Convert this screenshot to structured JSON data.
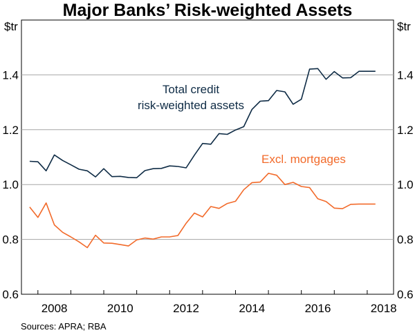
{
  "chart_data": {
    "type": "line",
    "title": "Major Banks’ Risk-weighted Assets",
    "left_unit": "$tr",
    "right_unit": "$tr",
    "source": "Sources: APRA; RBA",
    "x_ticks": [
      "2008",
      "2010",
      "2012",
      "2014",
      "2016",
      "2018"
    ],
    "y_ticks": [
      "0.6",
      "0.8",
      "1.0",
      "1.2",
      "1.4"
    ],
    "ylim": [
      0.6,
      1.6
    ],
    "xlim": [
      2007.5,
      2018.8
    ],
    "grid": true,
    "series": [
      {
        "name": "Total credit risk-weighted assets",
        "label_lines": [
          "Total credit",
          "risk-weighted assets"
        ],
        "color": "#0e2b45",
        "x": [
          2007.75,
          2008.0,
          2008.25,
          2008.5,
          2008.75,
          2009.0,
          2009.25,
          2009.5,
          2009.75,
          2010.0,
          2010.25,
          2010.5,
          2010.75,
          2011.0,
          2011.25,
          2011.5,
          2011.75,
          2012.0,
          2012.25,
          2012.5,
          2012.75,
          2013.0,
          2013.25,
          2013.5,
          2013.75,
          2014.0,
          2014.25,
          2014.5,
          2014.75,
          2015.0,
          2015.25,
          2015.5,
          2015.75,
          2016.0,
          2016.25,
          2016.5,
          2016.75,
          2017.0,
          2017.25,
          2017.5,
          2017.75,
          2018.0,
          2018.25
        ],
        "values": [
          1.085,
          1.083,
          1.05,
          1.108,
          1.088,
          1.072,
          1.056,
          1.05,
          1.028,
          1.058,
          1.029,
          1.03,
          1.026,
          1.025,
          1.051,
          1.058,
          1.059,
          1.068,
          1.066,
          1.061,
          1.107,
          1.15,
          1.147,
          1.186,
          1.183,
          1.199,
          1.211,
          1.274,
          1.304,
          1.306,
          1.343,
          1.338,
          1.293,
          1.311,
          1.421,
          1.423,
          1.384,
          1.412,
          1.389,
          1.39,
          1.413,
          1.413,
          1.413
        ]
      },
      {
        "name": "Excl. mortgages",
        "label_lines": [
          "Excl. mortgages"
        ],
        "color": "#f26a2a",
        "x": [
          2007.75,
          2008.0,
          2008.25,
          2008.5,
          2008.75,
          2009.0,
          2009.25,
          2009.5,
          2009.75,
          2010.0,
          2010.25,
          2010.5,
          2010.75,
          2011.0,
          2011.25,
          2011.5,
          2011.75,
          2012.0,
          2012.25,
          2012.5,
          2012.75,
          2013.0,
          2013.25,
          2013.5,
          2013.75,
          2014.0,
          2014.25,
          2014.5,
          2014.75,
          2015.0,
          2015.25,
          2015.5,
          2015.75,
          2016.0,
          2016.25,
          2016.5,
          2016.75,
          2017.0,
          2017.25,
          2017.5,
          2017.75,
          2018.0,
          2018.25
        ],
        "values": [
          0.918,
          0.88,
          0.933,
          0.853,
          0.826,
          0.809,
          0.791,
          0.77,
          0.815,
          0.787,
          0.786,
          0.781,
          0.776,
          0.798,
          0.805,
          0.801,
          0.809,
          0.809,
          0.814,
          0.859,
          0.896,
          0.882,
          0.92,
          0.913,
          0.931,
          0.939,
          0.981,
          1.007,
          1.009,
          1.041,
          1.034,
          1.0,
          1.008,
          0.993,
          0.989,
          0.948,
          0.938,
          0.914,
          0.912,
          0.928,
          0.929,
          0.929,
          0.929
        ]
      }
    ]
  }
}
